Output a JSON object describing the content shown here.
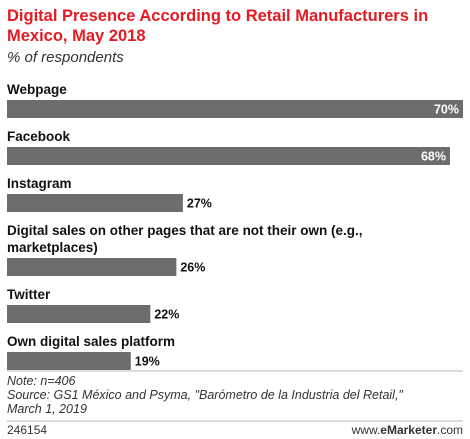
{
  "chart_data": {
    "type": "bar",
    "orientation": "horizontal",
    "title": "Digital Presence According to Retail Manufacturers in Mexico, May 2018",
    "title_lines": [
      "Digital Presence According to Retail Manufacturers in",
      "Mexico, May 2018"
    ],
    "subtitle": "% of respondents",
    "categories": [
      "Webpage",
      "Facebook",
      "Instagram",
      "Digital sales on other pages that are not their own (e.g., marketplaces)",
      "Twitter",
      "Own digital sales platform"
    ],
    "category_lines": [
      [
        "Webpage"
      ],
      [
        "Facebook"
      ],
      [
        "Instagram"
      ],
      [
        "Digital sales on other pages that are not their own (e.g.,",
        "marketplaces)"
      ],
      [
        "Twitter"
      ],
      [
        "Own digital sales platform"
      ]
    ],
    "values": [
      70,
      68,
      27,
      26,
      22,
      19
    ],
    "value_labels": [
      "70%",
      "68%",
      "27%",
      "26%",
      "22%",
      "19%"
    ],
    "xlim": [
      0,
      70
    ],
    "bar_color": "#6d6d6d",
    "grid": false
  },
  "note": "Note: n=406",
  "source_lines": [
    "Source: GS1 México and Psyma, \"Barómetro de la Industria del Retail,\"",
    "March 1, 2019"
  ],
  "footer": {
    "chart_id": "246154",
    "brand_prefix": "www.",
    "brand_bold": "eMarketer",
    "brand_suffix": ".com"
  }
}
